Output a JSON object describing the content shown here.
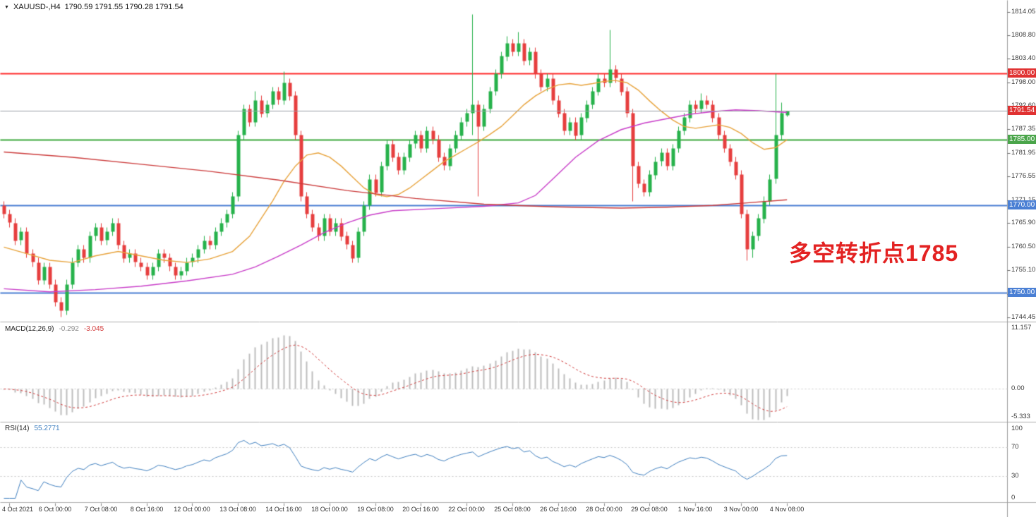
{
  "header": {
    "symbol_timeframe": "XAUUSD-,H4",
    "ohlc_readout": "1790.59 1791.55 1790.28 1791.54"
  },
  "annotation": {
    "text": "多空转折点1785",
    "color": "#e32222"
  },
  "indicators": {
    "macd": {
      "label": "MACD(12,26,9)",
      "value_main": "-0.292",
      "value_signal": "-3.045",
      "axis_labels": [
        "11.157",
        "0.00",
        "-5.333"
      ]
    },
    "rsi": {
      "label": "RSI(14)",
      "value": "55.2771",
      "axis_labels": [
        "100",
        "70",
        "30",
        "0"
      ],
      "guides": [
        70,
        30
      ]
    }
  },
  "colors": {
    "background": "#ffffff",
    "up": "#26b24b",
    "down": "#e63e3e",
    "ma_fast": "#e8a33b",
    "ma_medium": "#c93ec9",
    "ma_slow": "#cc3b3b",
    "current_price_line": "#9aa0a6",
    "current_price_badge": "#e03131",
    "macd_histogram": "#bdbdbd",
    "macd_signal": "#d23b3b",
    "macd_value_text": "#8a8a8a",
    "rsi_line": "#4080c0",
    "separator": "#b0b0b0",
    "axis_text": "#3a3a3a"
  },
  "chart_data": {
    "type": "candlestick",
    "symbol": "XAUUSD-",
    "timeframe": "H4",
    "last_ohlc": {
      "open": 1790.59,
      "high": 1791.55,
      "low": 1790.28,
      "close": 1791.54
    },
    "price_axis_ticks": [
      1814.05,
      1808.8,
      1803.4,
      1798.0,
      1792.6,
      1787.35,
      1781.95,
      1776.55,
      1771.15,
      1765.9,
      1760.5,
      1755.1,
      1749.7,
      1744.45
    ],
    "horizontal_lines": [
      {
        "price": 1800.0,
        "label": "1800.00",
        "color": "#ff2a2a",
        "badge_bg": "#e03131"
      },
      {
        "price": 1785.0,
        "label": "1785.00",
        "color": "#3ca83c",
        "badge_bg": "#4aa54a"
      },
      {
        "price": 1770.0,
        "label": "1770.00",
        "color": "#4a7fd4",
        "badge_bg": "#4a7fd4"
      },
      {
        "price": 1750.0,
        "label": "1750.00",
        "color": "#4a7fd4",
        "badge_bg": "#4a7fd4"
      }
    ],
    "current_price": {
      "value": 1791.54,
      "label": "1791.54"
    },
    "time_labels": [
      "4 Oct 2021",
      "6 Oct 00:00",
      "7 Oct 08:00",
      "8 Oct 16:00",
      "12 Oct 00:00",
      "13 Oct 08:00",
      "14 Oct 16:00",
      "18 Oct 00:00",
      "19 Oct 08:00",
      "20 Oct 16:00",
      "22 Oct 00:00",
      "25 Oct 08:00",
      "26 Oct 16:00",
      "28 Oct 00:00",
      "29 Oct 08:00",
      "1 Nov 16:00",
      "3 Nov 00:00",
      "4 Nov 08:00"
    ],
    "macd_params": {
      "fast": 12,
      "slow": 26,
      "signal": 9
    },
    "rsi_period": 14,
    "candles": [
      [
        1770,
        1771,
        1767,
        1768
      ],
      [
        1768,
        1769,
        1765,
        1766
      ],
      [
        1766,
        1767,
        1761,
        1762
      ],
      [
        1762,
        1765,
        1761,
        1764
      ],
      [
        1764,
        1765,
        1758,
        1759
      ],
      [
        1759,
        1760,
        1756,
        1757
      ],
      [
        1757,
        1758,
        1752,
        1753
      ],
      [
        1753,
        1757,
        1752,
        1756
      ],
      [
        1756,
        1757,
        1751,
        1752
      ],
      [
        1752,
        1753,
        1747,
        1748
      ],
      [
        1748,
        1749,
        1744.5,
        1746
      ],
      [
        1746,
        1753,
        1745,
        1752
      ],
      [
        1752,
        1758,
        1751,
        1757
      ],
      [
        1757,
        1761,
        1756,
        1760
      ],
      [
        1760,
        1761,
        1757,
        1758
      ],
      [
        1758,
        1764,
        1757,
        1763
      ],
      [
        1763,
        1766,
        1762,
        1765
      ],
      [
        1765,
        1766,
        1761,
        1762
      ],
      [
        1762,
        1765,
        1761,
        1764
      ],
      [
        1764,
        1767,
        1763,
        1766
      ],
      [
        1766,
        1767,
        1760,
        1761
      ],
      [
        1761,
        1762,
        1757,
        1758
      ],
      [
        1758,
        1760,
        1757,
        1759
      ],
      [
        1759,
        1760,
        1756,
        1757
      ],
      [
        1757,
        1758,
        1755,
        1756
      ],
      [
        1756,
        1757,
        1753,
        1754
      ],
      [
        1754,
        1757,
        1753,
        1756
      ],
      [
        1756,
        1760,
        1755,
        1759
      ],
      [
        1759,
        1760,
        1757,
        1758
      ],
      [
        1758,
        1759,
        1755,
        1756
      ],
      [
        1756,
        1757,
        1753,
        1754
      ],
      [
        1754,
        1756,
        1753,
        1755
      ],
      [
        1755,
        1758,
        1754,
        1757
      ],
      [
        1757,
        1759,
        1756,
        1758
      ],
      [
        1758,
        1761,
        1757,
        1760
      ],
      [
        1760,
        1763,
        1759,
        1762
      ],
      [
        1762,
        1763,
        1760,
        1761
      ],
      [
        1761,
        1765,
        1760,
        1764
      ],
      [
        1764,
        1767,
        1763,
        1766
      ],
      [
        1766,
        1769,
        1765,
        1768
      ],
      [
        1768,
        1773,
        1767,
        1772
      ],
      [
        1772,
        1787,
        1771,
        1786
      ],
      [
        1786,
        1793,
        1785,
        1792
      ],
      [
        1792,
        1793,
        1788,
        1789
      ],
      [
        1789,
        1796,
        1788,
        1794
      ],
      [
        1794,
        1795,
        1790,
        1791
      ],
      [
        1791,
        1794,
        1790,
        1793
      ],
      [
        1793,
        1797,
        1792,
        1796
      ],
      [
        1796,
        1797,
        1793,
        1794
      ],
      [
        1794,
        1800.5,
        1793,
        1798
      ],
      [
        1798,
        1799,
        1794,
        1795
      ],
      [
        1795,
        1796,
        1785,
        1786
      ],
      [
        1786,
        1787,
        1771,
        1772
      ],
      [
        1772,
        1773,
        1767,
        1768
      ],
      [
        1768,
        1769,
        1764,
        1765
      ],
      [
        1765,
        1766,
        1762,
        1763
      ],
      [
        1763,
        1768,
        1762,
        1767
      ],
      [
        1767,
        1768,
        1763,
        1764
      ],
      [
        1764,
        1767,
        1763,
        1766
      ],
      [
        1766,
        1767,
        1762,
        1763
      ],
      [
        1763,
        1764,
        1760,
        1761
      ],
      [
        1761,
        1762,
        1757,
        1758
      ],
      [
        1758,
        1765,
        1757,
        1764
      ],
      [
        1764,
        1771,
        1763,
        1770
      ],
      [
        1770,
        1777,
        1769,
        1776
      ],
      [
        1776,
        1777,
        1772,
        1773
      ],
      [
        1773,
        1780,
        1772,
        1779
      ],
      [
        1779,
        1785,
        1778,
        1784
      ],
      [
        1784,
        1785,
        1780,
        1781
      ],
      [
        1781,
        1782,
        1777,
        1778
      ],
      [
        1778,
        1782,
        1777,
        1781
      ],
      [
        1781,
        1785,
        1780,
        1784
      ],
      [
        1784,
        1787,
        1783,
        1786
      ],
      [
        1786,
        1787,
        1782,
        1783
      ],
      [
        1783,
        1788,
        1782,
        1787
      ],
      [
        1787,
        1788,
        1784,
        1785
      ],
      [
        1785,
        1786,
        1780,
        1781
      ],
      [
        1781,
        1782,
        1778,
        1779
      ],
      [
        1779,
        1784,
        1778,
        1783
      ],
      [
        1783,
        1787,
        1782,
        1786
      ],
      [
        1786,
        1790,
        1785,
        1789
      ],
      [
        1789,
        1792,
        1788,
        1791
      ],
      [
        1791,
        1813.5,
        1786,
        1793
      ],
      [
        1793,
        1794,
        1772,
        1788
      ],
      [
        1788,
        1793,
        1787,
        1792
      ],
      [
        1792,
        1797,
        1791,
        1796
      ],
      [
        1796,
        1801,
        1795,
        1800
      ],
      [
        1800,
        1805,
        1799,
        1804
      ],
      [
        1804,
        1808.5,
        1803,
        1807
      ],
      [
        1807,
        1808,
        1804,
        1805
      ],
      [
        1805,
        1809.5,
        1804,
        1807
      ],
      [
        1807,
        1808,
        1802,
        1803
      ],
      [
        1803,
        1806,
        1802,
        1805
      ],
      [
        1805,
        1806,
        1799,
        1800
      ],
      [
        1800,
        1801,
        1796,
        1797
      ],
      [
        1797,
        1800,
        1796,
        1799
      ],
      [
        1799,
        1800,
        1793,
        1794
      ],
      [
        1794,
        1795,
        1790,
        1791
      ],
      [
        1791,
        1792,
        1786,
        1787
      ],
      [
        1787,
        1790,
        1786,
        1789
      ],
      [
        1789,
        1790,
        1785,
        1786
      ],
      [
        1786,
        1791,
        1785,
        1790
      ],
      [
        1790,
        1794,
        1789,
        1793
      ],
      [
        1793,
        1797,
        1792,
        1796
      ],
      [
        1796,
        1800,
        1795,
        1799
      ],
      [
        1799,
        1800,
        1797,
        1798
      ],
      [
        1798,
        1810,
        1797,
        1801
      ],
      [
        1801,
        1802,
        1798,
        1799
      ],
      [
        1799,
        1800,
        1795,
        1796
      ],
      [
        1796,
        1797,
        1790,
        1791
      ],
      [
        1791,
        1792,
        1771,
        1779
      ],
      [
        1779,
        1780,
        1774,
        1775
      ],
      [
        1775,
        1776,
        1772,
        1773
      ],
      [
        1773,
        1778,
        1772,
        1777
      ],
      [
        1777,
        1781,
        1776,
        1780
      ],
      [
        1780,
        1783,
        1779,
        1782
      ],
      [
        1782,
        1783,
        1778,
        1779
      ],
      [
        1779,
        1784,
        1778,
        1783
      ],
      [
        1783,
        1788,
        1782,
        1787
      ],
      [
        1787,
        1791,
        1786,
        1790
      ],
      [
        1790,
        1794,
        1789,
        1793
      ],
      [
        1793,
        1794,
        1791,
        1792
      ],
      [
        1792,
        1795.5,
        1791,
        1794
      ],
      [
        1794,
        1795,
        1792,
        1793
      ],
      [
        1793,
        1794,
        1789,
        1790
      ],
      [
        1790,
        1791,
        1785,
        1786
      ],
      [
        1786,
        1787,
        1782,
        1783
      ],
      [
        1783,
        1784,
        1779,
        1780
      ],
      [
        1780,
        1781,
        1776,
        1777
      ],
      [
        1777,
        1778,
        1767,
        1768
      ],
      [
        1768,
        1769,
        1757.5,
        1760
      ],
      [
        1760,
        1764,
        1758,
        1763
      ],
      [
        1763,
        1768,
        1762,
        1767
      ],
      [
        1767,
        1772,
        1766,
        1771
      ],
      [
        1771,
        1777,
        1770,
        1776
      ],
      [
        1776,
        1800,
        1775,
        1786
      ],
      [
        1786,
        1793.5,
        1785,
        1791
      ],
      [
        1790.59,
        1791.55,
        1790.28,
        1791.54
      ]
    ],
    "moving_averages": [
      {
        "name": "ma-fast",
        "color": "#e8a33b",
        "points": [
          [
            0,
            1760.5
          ],
          [
            4,
            1759
          ],
          [
            8,
            1757.5
          ],
          [
            12,
            1757
          ],
          [
            16,
            1758.5
          ],
          [
            20,
            1759.5
          ],
          [
            24,
            1758.5
          ],
          [
            28,
            1757.5
          ],
          [
            32,
            1757
          ],
          [
            36,
            1757.8
          ],
          [
            40,
            1759.5
          ],
          [
            43,
            1763
          ],
          [
            45,
            1767
          ],
          [
            47,
            1771
          ],
          [
            49,
            1775.5
          ],
          [
            51,
            1779
          ],
          [
            53,
            1781.5
          ],
          [
            55,
            1782
          ],
          [
            57,
            1781
          ],
          [
            59,
            1779
          ],
          [
            61,
            1776.5
          ],
          [
            63,
            1774
          ],
          [
            65,
            1772.5
          ],
          [
            67,
            1772
          ],
          [
            69,
            1772.5
          ],
          [
            71,
            1774
          ],
          [
            73,
            1776
          ],
          [
            75,
            1778
          ],
          [
            77,
            1780
          ],
          [
            79,
            1781.5
          ],
          [
            81,
            1783
          ],
          [
            83,
            1784.5
          ],
          [
            85,
            1786.2
          ],
          [
            87,
            1788
          ],
          [
            89,
            1790.5
          ],
          [
            91,
            1793
          ],
          [
            93,
            1795
          ],
          [
            95,
            1796.5
          ],
          [
            97,
            1797.5
          ],
          [
            99,
            1797.8
          ],
          [
            101,
            1797.4
          ],
          [
            103,
            1797.8
          ],
          [
            105,
            1798.3
          ],
          [
            107,
            1798.5
          ],
          [
            109,
            1798
          ],
          [
            111,
            1796.3
          ],
          [
            113,
            1793.8
          ],
          [
            115,
            1791.5
          ],
          [
            117,
            1789.5
          ],
          [
            119,
            1788
          ],
          [
            121,
            1787.6
          ],
          [
            123,
            1788
          ],
          [
            125,
            1788.4
          ],
          [
            127,
            1787.8
          ],
          [
            129,
            1786.4
          ],
          [
            131,
            1784.3
          ],
          [
            133,
            1782.8
          ],
          [
            135,
            1783.2
          ],
          [
            137,
            1785
          ]
        ]
      },
      {
        "name": "ma-medium",
        "color": "#c93ec9",
        "points": [
          [
            0,
            1751
          ],
          [
            8,
            1750.3
          ],
          [
            16,
            1750.8
          ],
          [
            24,
            1751.6
          ],
          [
            32,
            1752.8
          ],
          [
            40,
            1754.3
          ],
          [
            44,
            1756
          ],
          [
            48,
            1758.4
          ],
          [
            52,
            1761
          ],
          [
            56,
            1763.8
          ],
          [
            60,
            1766
          ],
          [
            64,
            1767.8
          ],
          [
            68,
            1768.8
          ],
          [
            76,
            1769.3
          ],
          [
            84,
            1769.8
          ],
          [
            90,
            1770.6
          ],
          [
            93,
            1772.3
          ],
          [
            96,
            1776
          ],
          [
            100,
            1781
          ],
          [
            104,
            1784.8
          ],
          [
            108,
            1787.3
          ],
          [
            112,
            1788.8
          ],
          [
            116,
            1789.8
          ],
          [
            120,
            1790.8
          ],
          [
            124,
            1791.4
          ],
          [
            128,
            1791.8
          ],
          [
            132,
            1791.6
          ],
          [
            137,
            1791.2
          ]
        ]
      },
      {
        "name": "ma-slow",
        "color": "#cc3b3b",
        "points": [
          [
            0,
            1782.2
          ],
          [
            12,
            1781
          ],
          [
            24,
            1779.4
          ],
          [
            36,
            1777.8
          ],
          [
            48,
            1775.8
          ],
          [
            60,
            1773.4
          ],
          [
            72,
            1771.6
          ],
          [
            84,
            1770.3
          ],
          [
            96,
            1769.7
          ],
          [
            108,
            1769.4
          ],
          [
            116,
            1769.6
          ],
          [
            124,
            1770
          ],
          [
            130,
            1770.6
          ],
          [
            137,
            1771.3
          ]
        ]
      }
    ]
  }
}
